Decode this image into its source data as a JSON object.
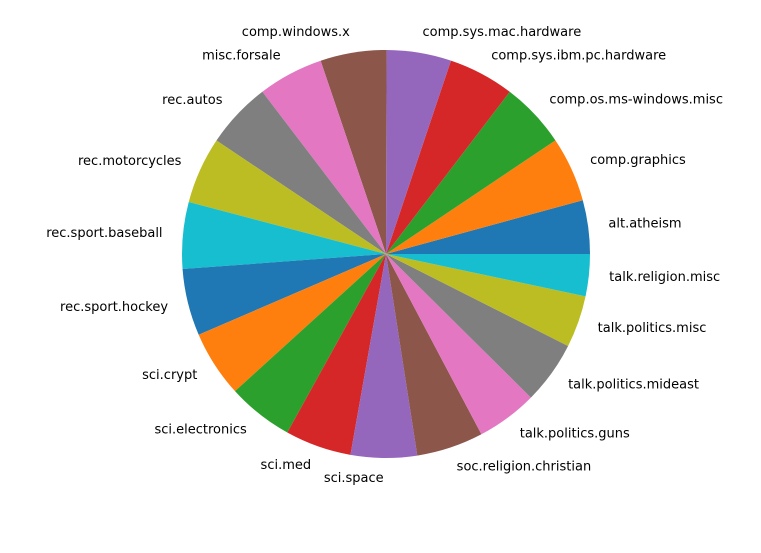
{
  "chart_data": {
    "type": "pie",
    "title": "",
    "start_angle_deg": 0,
    "direction": "counterclockwise",
    "legend": "none",
    "grid": false,
    "slices": [
      {
        "label": "alt.atheism",
        "value": 480,
        "color": "#1f77b4"
      },
      {
        "label": "comp.graphics",
        "value": 584,
        "color": "#ff7f0e"
      },
      {
        "label": "comp.os.ms-windows.misc",
        "value": 591,
        "color": "#2ca02c"
      },
      {
        "label": "comp.sys.ibm.pc.hardware",
        "value": 590,
        "color": "#d62728"
      },
      {
        "label": "comp.sys.mac.hardware",
        "value": 578,
        "color": "#9467bd"
      },
      {
        "label": "comp.windows.x",
        "value": 593,
        "color": "#8c564b"
      },
      {
        "label": "misc.forsale",
        "value": 585,
        "color": "#e377c2"
      },
      {
        "label": "rec.autos",
        "value": 594,
        "color": "#7f7f7f"
      },
      {
        "label": "rec.motorcycles",
        "value": 598,
        "color": "#bcbd22"
      },
      {
        "label": "rec.sport.baseball",
        "value": 597,
        "color": "#17becf"
      },
      {
        "label": "rec.sport.hockey",
        "value": 600,
        "color": "#1f77b4"
      },
      {
        "label": "sci.crypt",
        "value": 595,
        "color": "#ff7f0e"
      },
      {
        "label": "sci.electronics",
        "value": 591,
        "color": "#2ca02c"
      },
      {
        "label": "sci.med",
        "value": 594,
        "color": "#d62728"
      },
      {
        "label": "sci.space",
        "value": 593,
        "color": "#9467bd"
      },
      {
        "label": "soc.religion.christian",
        "value": 599,
        "color": "#8c564b"
      },
      {
        "label": "talk.politics.guns",
        "value": 546,
        "color": "#e377c2"
      },
      {
        "label": "talk.politics.mideast",
        "value": 564,
        "color": "#7f7f7f"
      },
      {
        "label": "talk.politics.misc",
        "value": 465,
        "color": "#bcbd22"
      },
      {
        "label": "talk.religion.misc",
        "value": 377,
        "color": "#17becf"
      }
    ]
  }
}
